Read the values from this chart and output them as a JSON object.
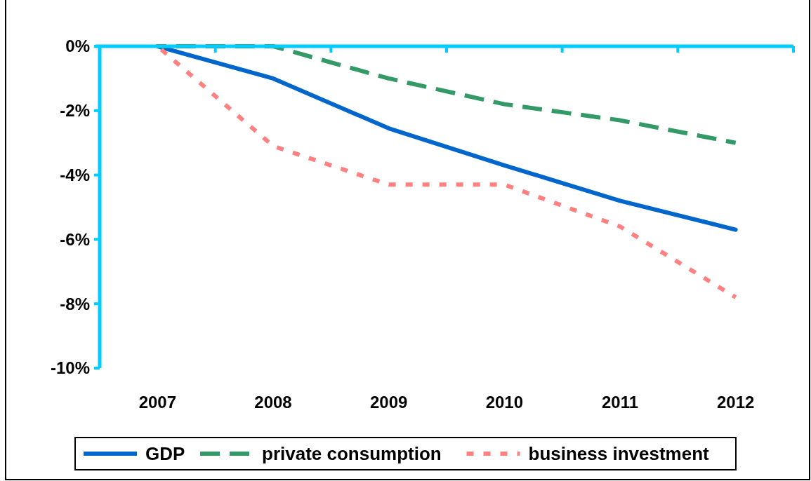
{
  "chart_data": {
    "type": "line",
    "categories": [
      "2007",
      "2008",
      "2009",
      "2010",
      "2011",
      "2012"
    ],
    "series": [
      {
        "name": "GDP",
        "color": "#0066cc",
        "line_style": "solid",
        "values": [
          0,
          -1.0,
          -2.55,
          -3.7,
          -4.8,
          -5.7
        ]
      },
      {
        "name": "private consumption",
        "color": "#339966",
        "line_style": "dashed",
        "values": [
          0,
          0,
          -1.0,
          -1.8,
          -2.3,
          -3.0
        ]
      },
      {
        "name": "business investment",
        "color": "#ff8080",
        "line_style": "dotted",
        "values": [
          0,
          -3.1,
          -4.3,
          -4.3,
          -5.6,
          -7.8
        ]
      }
    ],
    "ylim": [
      -10,
      0
    ],
    "yticks": [
      {
        "value": 0,
        "label": "0%"
      },
      {
        "value": -2,
        "label": "-2%"
      },
      {
        "value": -4,
        "label": "-4%"
      },
      {
        "value": -6,
        "label": "-6%"
      },
      {
        "value": -8,
        "label": "-8%"
      },
      {
        "value": -10,
        "label": "-10%"
      }
    ],
    "grid": false,
    "legend": "bottom"
  }
}
